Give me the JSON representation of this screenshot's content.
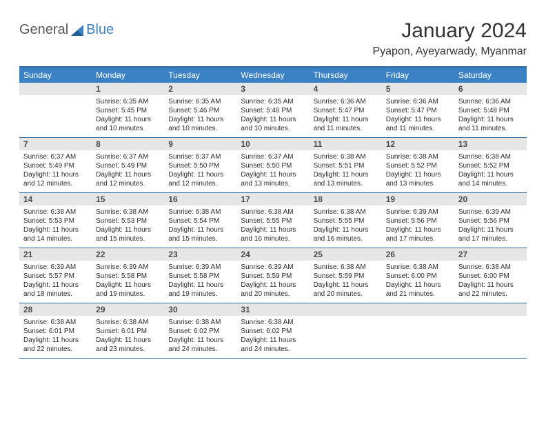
{
  "brand": {
    "first": "General",
    "second": "Blue"
  },
  "title": "January 2024",
  "location": "Pyapon, Ayeyarwady, Myanmar",
  "colors": {
    "header_bg": "#3b82c4",
    "rule": "#2f6aa0",
    "daynum_bg": "#e6e6e6",
    "text": "#2c2c2c",
    "brand_gray": "#595959",
    "brand_blue": "#3b82c4"
  },
  "weekdays": [
    "Sunday",
    "Monday",
    "Tuesday",
    "Wednesday",
    "Thursday",
    "Friday",
    "Saturday"
  ],
  "weeks": [
    [
      {
        "n": "",
        "lines": []
      },
      {
        "n": "1",
        "lines": [
          "Sunrise: 6:35 AM",
          "Sunset: 5:45 PM",
          "Daylight: 11 hours and 10 minutes."
        ]
      },
      {
        "n": "2",
        "lines": [
          "Sunrise: 6:35 AM",
          "Sunset: 5:46 PM",
          "Daylight: 11 hours and 10 minutes."
        ]
      },
      {
        "n": "3",
        "lines": [
          "Sunrise: 6:35 AM",
          "Sunset: 5:46 PM",
          "Daylight: 11 hours and 10 minutes."
        ]
      },
      {
        "n": "4",
        "lines": [
          "Sunrise: 6:36 AM",
          "Sunset: 5:47 PM",
          "Daylight: 11 hours and 11 minutes."
        ]
      },
      {
        "n": "5",
        "lines": [
          "Sunrise: 6:36 AM",
          "Sunset: 5:47 PM",
          "Daylight: 11 hours and 11 minutes."
        ]
      },
      {
        "n": "6",
        "lines": [
          "Sunrise: 6:36 AM",
          "Sunset: 5:48 PM",
          "Daylight: 11 hours and 11 minutes."
        ]
      }
    ],
    [
      {
        "n": "7",
        "lines": [
          "Sunrise: 6:37 AM",
          "Sunset: 5:49 PM",
          "Daylight: 11 hours and 12 minutes."
        ]
      },
      {
        "n": "8",
        "lines": [
          "Sunrise: 6:37 AM",
          "Sunset: 5:49 PM",
          "Daylight: 11 hours and 12 minutes."
        ]
      },
      {
        "n": "9",
        "lines": [
          "Sunrise: 6:37 AM",
          "Sunset: 5:50 PM",
          "Daylight: 11 hours and 12 minutes."
        ]
      },
      {
        "n": "10",
        "lines": [
          "Sunrise: 6:37 AM",
          "Sunset: 5:50 PM",
          "Daylight: 11 hours and 13 minutes."
        ]
      },
      {
        "n": "11",
        "lines": [
          "Sunrise: 6:38 AM",
          "Sunset: 5:51 PM",
          "Daylight: 11 hours and 13 minutes."
        ]
      },
      {
        "n": "12",
        "lines": [
          "Sunrise: 6:38 AM",
          "Sunset: 5:52 PM",
          "Daylight: 11 hours and 13 minutes."
        ]
      },
      {
        "n": "13",
        "lines": [
          "Sunrise: 6:38 AM",
          "Sunset: 5:52 PM",
          "Daylight: 11 hours and 14 minutes."
        ]
      }
    ],
    [
      {
        "n": "14",
        "lines": [
          "Sunrise: 6:38 AM",
          "Sunset: 5:53 PM",
          "Daylight: 11 hours and 14 minutes."
        ]
      },
      {
        "n": "15",
        "lines": [
          "Sunrise: 6:38 AM",
          "Sunset: 5:53 PM",
          "Daylight: 11 hours and 15 minutes."
        ]
      },
      {
        "n": "16",
        "lines": [
          "Sunrise: 6:38 AM",
          "Sunset: 5:54 PM",
          "Daylight: 11 hours and 15 minutes."
        ]
      },
      {
        "n": "17",
        "lines": [
          "Sunrise: 6:38 AM",
          "Sunset: 5:55 PM",
          "Daylight: 11 hours and 16 minutes."
        ]
      },
      {
        "n": "18",
        "lines": [
          "Sunrise: 6:38 AM",
          "Sunset: 5:55 PM",
          "Daylight: 11 hours and 16 minutes."
        ]
      },
      {
        "n": "19",
        "lines": [
          "Sunrise: 6:39 AM",
          "Sunset: 5:56 PM",
          "Daylight: 11 hours and 17 minutes."
        ]
      },
      {
        "n": "20",
        "lines": [
          "Sunrise: 6:39 AM",
          "Sunset: 5:56 PM",
          "Daylight: 11 hours and 17 minutes."
        ]
      }
    ],
    [
      {
        "n": "21",
        "lines": [
          "Sunrise: 6:39 AM",
          "Sunset: 5:57 PM",
          "Daylight: 11 hours and 18 minutes."
        ]
      },
      {
        "n": "22",
        "lines": [
          "Sunrise: 6:39 AM",
          "Sunset: 5:58 PM",
          "Daylight: 11 hours and 19 minutes."
        ]
      },
      {
        "n": "23",
        "lines": [
          "Sunrise: 6:39 AM",
          "Sunset: 5:58 PM",
          "Daylight: 11 hours and 19 minutes."
        ]
      },
      {
        "n": "24",
        "lines": [
          "Sunrise: 6:39 AM",
          "Sunset: 5:59 PM",
          "Daylight: 11 hours and 20 minutes."
        ]
      },
      {
        "n": "25",
        "lines": [
          "Sunrise: 6:38 AM",
          "Sunset: 5:59 PM",
          "Daylight: 11 hours and 20 minutes."
        ]
      },
      {
        "n": "26",
        "lines": [
          "Sunrise: 6:38 AM",
          "Sunset: 6:00 PM",
          "Daylight: 11 hours and 21 minutes."
        ]
      },
      {
        "n": "27",
        "lines": [
          "Sunrise: 6:38 AM",
          "Sunset: 6:00 PM",
          "Daylight: 11 hours and 22 minutes."
        ]
      }
    ],
    [
      {
        "n": "28",
        "lines": [
          "Sunrise: 6:38 AM",
          "Sunset: 6:01 PM",
          "Daylight: 11 hours and 22 minutes."
        ]
      },
      {
        "n": "29",
        "lines": [
          "Sunrise: 6:38 AM",
          "Sunset: 6:01 PM",
          "Daylight: 11 hours and 23 minutes."
        ]
      },
      {
        "n": "30",
        "lines": [
          "Sunrise: 6:38 AM",
          "Sunset: 6:02 PM",
          "Daylight: 11 hours and 24 minutes."
        ]
      },
      {
        "n": "31",
        "lines": [
          "Sunrise: 6:38 AM",
          "Sunset: 6:02 PM",
          "Daylight: 11 hours and 24 minutes."
        ]
      },
      {
        "n": "",
        "lines": []
      },
      {
        "n": "",
        "lines": []
      },
      {
        "n": "",
        "lines": []
      }
    ]
  ]
}
